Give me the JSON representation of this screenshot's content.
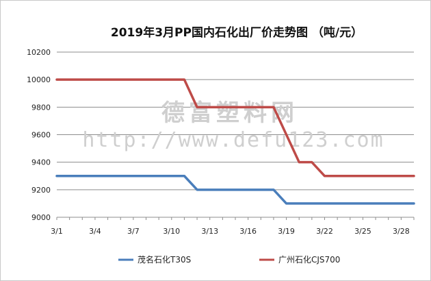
{
  "chart_data": {
    "type": "line",
    "title": "2019年3月PP国内石化出厂价走势图 （吨/元）",
    "xlabel": "",
    "ylabel": "",
    "x_ticks": [
      "3/1",
      "3/4",
      "3/7",
      "3/10",
      "3/13",
      "3/16",
      "3/19",
      "3/22",
      "3/25",
      "3/28"
    ],
    "x_index_range": [
      0,
      28
    ],
    "ylim": [
      9000,
      10200
    ],
    "y_ticks": [
      9000,
      9200,
      9400,
      9600,
      9800,
      10000,
      10200
    ],
    "grid": "horizontal",
    "legend_position": "bottom",
    "series": [
      {
        "name": "茂名石化T30S",
        "color": "#4a7ebb",
        "points": [
          {
            "x": "3/1",
            "y": 9300
          },
          {
            "x": "3/11",
            "y": 9300
          },
          {
            "x": "3/12",
            "y": 9200
          },
          {
            "x": "3/18",
            "y": 9200
          },
          {
            "x": "3/19",
            "y": 9100
          },
          {
            "x": "3/29",
            "y": 9100
          }
        ]
      },
      {
        "name": "广州石化CJS700",
        "color": "#be4b48",
        "points": [
          {
            "x": "3/1",
            "y": 10000
          },
          {
            "x": "3/11",
            "y": 10000
          },
          {
            "x": "3/12",
            "y": 9800
          },
          {
            "x": "3/18",
            "y": 9800
          },
          {
            "x": "3/20",
            "y": 9400
          },
          {
            "x": "3/21",
            "y": 9400
          },
          {
            "x": "3/22",
            "y": 9300
          },
          {
            "x": "3/29",
            "y": 9300
          }
        ]
      }
    ]
  },
  "watermark": {
    "line1": "德富塑料网",
    "line2": "http://www.defu123.com"
  }
}
